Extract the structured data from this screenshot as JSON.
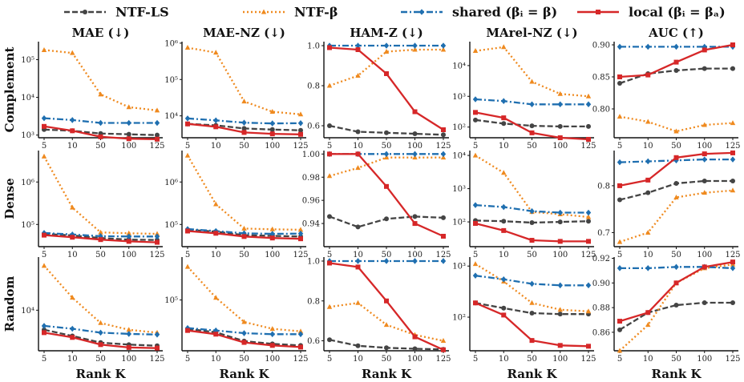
{
  "legend": [
    {
      "label": "NTF-LS",
      "color": "#444444",
      "dash": "dash",
      "marker": "circle"
    },
    {
      "label": "NTF-β",
      "color": "#ef8a1f",
      "dash": "dot",
      "marker": "triangle"
    },
    {
      "label": "shared (βᵢ = β)",
      "color": "#1f6fb0",
      "dash": "dashdot",
      "marker": "diamond"
    },
    {
      "label": "local (βᵢ = βₐ)",
      "color": "#d62728",
      "dash": "solid",
      "marker": "square"
    }
  ],
  "columns": [
    "MAE (↓)",
    "MAE-NZ (↓)",
    "HAM-Z (↓)",
    "MArel-NZ (↓)",
    "AUC (↑)"
  ],
  "rows": [
    "Complement",
    "Dense",
    "Random"
  ],
  "xlabel": "Rank K",
  "chart_data": {
    "type": "line",
    "x": [
      "5",
      "10",
      "50",
      "100",
      "125"
    ],
    "series_names": [
      "NTF-LS",
      "NTF-β",
      "shared (βᵢ = β)",
      "local (βᵢ = βₐ)"
    ],
    "panels": [
      {
        "row": "Complement",
        "col": "MAE (↓)",
        "scale": "log",
        "ylim": [
          850,
          300000
        ],
        "yticks": [
          {
            "v": 1000,
            "l": "10³"
          },
          {
            "v": 10000,
            "l": "10⁴"
          },
          {
            "v": 100000,
            "l": "10⁵"
          }
        ],
        "series": [
          [
            1400,
            1300,
            1100,
            1050,
            1000
          ],
          [
            180000,
            150000,
            12000,
            5500,
            4500
          ],
          [
            2800,
            2500,
            2100,
            2100,
            2100
          ],
          [
            1700,
            1300,
            900,
            800,
            780
          ]
        ]
      },
      {
        "row": "Complement",
        "col": "MAE-NZ (↓)",
        "scale": "log",
        "ylim": [
          2500,
          1100000
        ],
        "yticks": [
          {
            "v": 10000,
            "l": "10⁴"
          },
          {
            "v": 100000,
            "l": "10⁵"
          },
          {
            "v": 1000000,
            "l": "10⁶"
          }
        ],
        "series": [
          [
            6000,
            5500,
            4500,
            4200,
            4000
          ],
          [
            750000,
            550000,
            25000,
            13000,
            11000
          ],
          [
            8500,
            7500,
            6500,
            6200,
            6300
          ],
          [
            6000,
            5000,
            3500,
            3200,
            3100
          ]
        ]
      },
      {
        "row": "Complement",
        "col": "HAM-Z (↓)",
        "scale": "linear",
        "ylim": [
          0.54,
          1.02
        ],
        "yticks": [
          {
            "v": 0.6,
            "l": "0.6"
          },
          {
            "v": 0.8,
            "l": "0.8"
          },
          {
            "v": 1.0,
            "l": "1.0"
          }
        ],
        "series": [
          [
            0.6,
            0.57,
            0.565,
            0.56,
            0.555
          ],
          [
            0.8,
            0.85,
            0.97,
            0.98,
            0.98
          ],
          [
            1.0,
            1.0,
            1.0,
            1.0,
            1.0
          ],
          [
            0.99,
            0.98,
            0.86,
            0.67,
            0.58
          ]
        ]
      },
      {
        "row": "Complement",
        "col": "MArel-NZ (↓)",
        "scale": "log",
        "ylim": [
          45,
          60000
        ],
        "yticks": [
          {
            "v": 100,
            "l": "10²"
          },
          {
            "v": 1000,
            "l": "10³"
          },
          {
            "v": 10000,
            "l": "10⁴"
          }
        ],
        "series": [
          [
            170,
            130,
            110,
            105,
            105
          ],
          [
            30000,
            40000,
            3000,
            1200,
            1000
          ],
          [
            800,
            700,
            550,
            550,
            550
          ],
          [
            300,
            200,
            65,
            45,
            40
          ]
        ]
      },
      {
        "row": "Complement",
        "col": "AUC (↑)",
        "scale": "linear",
        "ylim": [
          0.755,
          0.905
        ],
        "yticks": [
          {
            "v": 0.8,
            "l": "0.80"
          },
          {
            "v": 0.85,
            "l": "0.85"
          },
          {
            "v": 0.9,
            "l": "0.90"
          }
        ],
        "series": [
          [
            0.84,
            0.855,
            0.86,
            0.863,
            0.863
          ],
          [
            0.788,
            0.78,
            0.765,
            0.775,
            0.778
          ],
          [
            0.897,
            0.897,
            0.897,
            0.897,
            0.897
          ],
          [
            0.85,
            0.853,
            0.873,
            0.892,
            0.9
          ]
        ]
      },
      {
        "row": "Dense",
        "col": "MAE (↓)",
        "scale": "log",
        "ylim": [
          30000,
          5500000
        ],
        "yticks": [
          {
            "v": 100000,
            "l": "10⁵"
          },
          {
            "v": 1000000,
            "l": "10⁶"
          }
        ],
        "series": [
          [
            60000,
            55000,
            48000,
            44000,
            43000
          ],
          [
            4000000,
            250000,
            65000,
            62000,
            60000
          ],
          [
            63000,
            58000,
            53000,
            52000,
            52000
          ],
          [
            56000,
            50000,
            44000,
            40000,
            38000
          ]
        ]
      },
      {
        "row": "Dense",
        "col": "MAE-NZ (↓)",
        "scale": "log",
        "ylim": [
          30000,
          5500000
        ],
        "yticks": [
          {
            "v": 100000,
            "l": "10⁵"
          },
          {
            "v": 1000000,
            "l": "10⁶"
          }
        ],
        "series": [
          [
            75000,
            68000,
            56000,
            54000,
            52000
          ],
          [
            4200000,
            300000,
            80000,
            77000,
            75000
          ],
          [
            78000,
            70000,
            62000,
            60000,
            61000
          ],
          [
            70000,
            62000,
            52000,
            48000,
            46000
          ]
        ]
      },
      {
        "row": "Dense",
        "col": "HAM-Z (↓)",
        "scale": "linear",
        "ylim": [
          0.92,
          1.003
        ],
        "yticks": [
          {
            "v": 0.94,
            "l": "0.94"
          },
          {
            "v": 0.96,
            "l": "0.96"
          },
          {
            "v": 0.98,
            "l": "0.98"
          },
          {
            "v": 1.0,
            "l": "1.00"
          }
        ],
        "series": [
          [
            0.946,
            0.937,
            0.944,
            0.946,
            0.945
          ],
          [
            0.981,
            0.988,
            0.997,
            0.997,
            0.997
          ],
          [
            1.0,
            1.0,
            1.0,
            1.0,
            1.0
          ],
          [
            1.0,
            1.0,
            0.972,
            0.94,
            0.929
          ]
        ]
      },
      {
        "row": "Dense",
        "col": "MArel-NZ (↓)",
        "scale": "log",
        "ylim": [
          18,
          14000
        ],
        "yticks": [
          {
            "v": 100,
            "l": "10²"
          },
          {
            "v": 1000,
            "l": "10³"
          },
          {
            "v": 10000,
            "l": "10⁴"
          }
        ],
        "series": [
          [
            110,
            105,
            95,
            100,
            105
          ],
          [
            10000,
            3000,
            200,
            170,
            140
          ],
          [
            320,
            280,
            210,
            190,
            190
          ],
          [
            90,
            55,
            28,
            26,
            26
          ]
        ]
      },
      {
        "row": "Dense",
        "col": "AUC (↑)",
        "scale": "linear",
        "ylim": [
          0.67,
          0.875
        ],
        "yticks": [
          {
            "v": 0.7,
            "l": "0.7"
          },
          {
            "v": 0.8,
            "l": "0.8"
          }
        ],
        "series": [
          [
            0.77,
            0.785,
            0.805,
            0.81,
            0.81
          ],
          [
            0.68,
            0.7,
            0.775,
            0.785,
            0.79
          ],
          [
            0.85,
            0.852,
            0.854,
            0.856,
            0.856
          ],
          [
            0.8,
            0.812,
            0.86,
            0.868,
            0.87
          ]
        ]
      },
      {
        "row": "Random",
        "col": "MAE (↓)",
        "scale": "log",
        "ylim": [
          1500,
          120000
        ],
        "yticks": [
          {
            "v": 10000,
            "l": "10⁴"
          }
        ],
        "series": [
          [
            4000,
            3000,
            2200,
            2000,
            1900
          ],
          [
            80000,
            18000,
            5500,
            4000,
            3500
          ],
          [
            4800,
            4200,
            3500,
            3300,
            3200
          ],
          [
            3500,
            2800,
            2000,
            1750,
            1700
          ]
        ]
      },
      {
        "row": "Random",
        "col": "MAE-NZ (↓)",
        "scale": "log",
        "ylim": [
          12000,
          600000
        ],
        "yticks": [
          {
            "v": 100000,
            "l": "10⁵"
          }
        ],
        "series": [
          [
            30000,
            26000,
            18000,
            16000,
            15000
          ],
          [
            400000,
            110000,
            40000,
            30000,
            27000
          ],
          [
            31000,
            28000,
            25000,
            24000,
            24000
          ],
          [
            28000,
            24000,
            17000,
            15000,
            14000
          ]
        ]
      },
      {
        "row": "Random",
        "col": "HAM-Z (↓)",
        "scale": "linear",
        "ylim": [
          0.55,
          1.02
        ],
        "yticks": [
          {
            "v": 0.6,
            "l": "0.6"
          },
          {
            "v": 0.8,
            "l": "0.8"
          },
          {
            "v": 1.0,
            "l": "1.0"
          }
        ],
        "series": [
          [
            0.605,
            0.575,
            0.565,
            0.56,
            0.557
          ],
          [
            0.77,
            0.79,
            0.68,
            0.63,
            0.6
          ],
          [
            1.0,
            1.0,
            1.0,
            1.0,
            1.0
          ],
          [
            0.99,
            0.97,
            0.8,
            0.62,
            0.555
          ]
        ]
      },
      {
        "row": "Random",
        "col": "MArel-NZ (↓)",
        "scale": "log",
        "ylim": [
          22,
          1500
        ],
        "yticks": [
          {
            "v": 100,
            "l": "10²"
          },
          {
            "v": 1000,
            "l": "10³"
          }
        ],
        "series": [
          [
            190,
            150,
            120,
            115,
            115
          ],
          [
            1100,
            500,
            190,
            140,
            130
          ],
          [
            650,
            550,
            450,
            420,
            420
          ],
          [
            190,
            110,
            35,
            28,
            27
          ]
        ]
      },
      {
        "row": "Random",
        "col": "AUC (↑)",
        "scale": "linear",
        "ylim": [
          0.845,
          0.921
        ],
        "yticks": [
          {
            "v": 0.86,
            "l": "0.86"
          },
          {
            "v": 0.88,
            "l": "0.88"
          },
          {
            "v": 0.9,
            "l": "0.90"
          },
          {
            "v": 0.92,
            "l": "0.92"
          }
        ],
        "series": [
          [
            0.862,
            0.876,
            0.882,
            0.884,
            0.884
          ],
          [
            0.845,
            0.866,
            0.9,
            0.912,
            0.915
          ],
          [
            0.912,
            0.912,
            0.913,
            0.913,
            0.912
          ],
          [
            0.869,
            0.876,
            0.9,
            0.913,
            0.917
          ]
        ]
      }
    ]
  }
}
